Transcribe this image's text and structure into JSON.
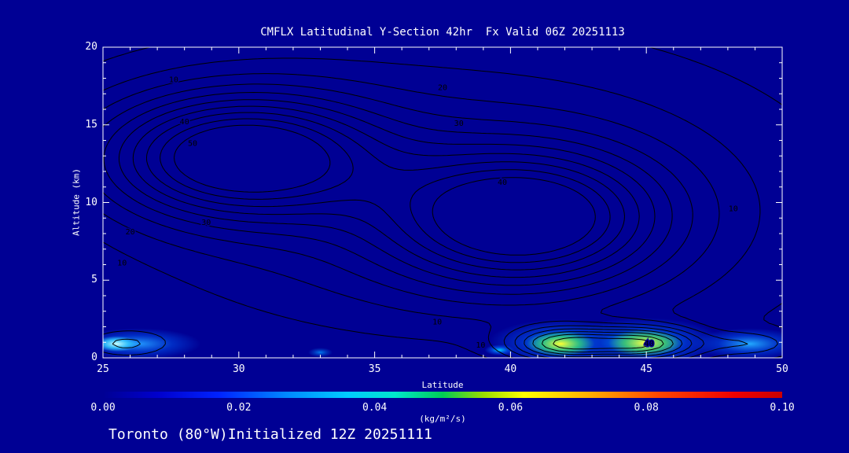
{
  "figure": {
    "title": "CMFLX Latitudinal Y-Section 42hr  Fx Valid 06Z 20251113",
    "footer": "Toronto (80°W)Initialized 12Z 20251111",
    "bg_color": "#000094",
    "frame_color": "#ffffff",
    "text_color": "#ffffff",
    "contour_color": "#000000"
  },
  "axes": {
    "xlabel": "Latitude",
    "ylabel": "Altitude (km)",
    "x_ticks": [
      25,
      30,
      35,
      40,
      45,
      50
    ],
    "y_ticks": [
      0,
      5,
      10,
      15,
      20
    ],
    "x_minor_step": 1,
    "y_minor_step": 1
  },
  "colorbar": {
    "ticks": [
      "0.00",
      "0.02",
      "0.04",
      "0.06",
      "0.08",
      "0.10"
    ],
    "unit": "(kg/m²/s)",
    "min": 0.0,
    "max": 0.1,
    "stops": [
      {
        "p": 0.0,
        "c": "#000094"
      },
      {
        "p": 0.08,
        "c": "#0000cc"
      },
      {
        "p": 0.17,
        "c": "#0022ff"
      },
      {
        "p": 0.27,
        "c": "#0088ff"
      },
      {
        "p": 0.36,
        "c": "#00ccff"
      },
      {
        "p": 0.43,
        "c": "#00e8cc"
      },
      {
        "p": 0.5,
        "c": "#00cc55"
      },
      {
        "p": 0.56,
        "c": "#99dd00"
      },
      {
        "p": 0.62,
        "c": "#ffff00"
      },
      {
        "p": 0.72,
        "c": "#ffaa00"
      },
      {
        "p": 0.82,
        "c": "#ff4400"
      },
      {
        "p": 0.93,
        "c": "#ee0000"
      },
      {
        "p": 1.0,
        "c": "#cc0000"
      }
    ]
  },
  "chart_data": {
    "type": "heatmap",
    "subtype": "latitude-height contour cross-section",
    "title": "CMFLX Latitudinal Y-Section 42hr  Fx Valid 06Z 20251113",
    "xlabel": "Latitude",
    "ylabel": "Altitude (km)",
    "xlim": [
      25,
      50
    ],
    "ylim": [
      0,
      20
    ],
    "value_unit": "(kg/m²/s)",
    "value_range": [
      0.0,
      0.1
    ],
    "contour_levels": [
      5,
      10,
      15,
      20,
      25,
      30,
      35,
      40,
      45,
      50
    ],
    "contour_labels": [
      {
        "lat": 27.6,
        "alt": 17.9,
        "text": "10"
      },
      {
        "lat": 28.0,
        "alt": 15.2,
        "text": "40"
      },
      {
        "lat": 28.3,
        "alt": 13.8,
        "text": "50"
      },
      {
        "lat": 26.0,
        "alt": 8.1,
        "text": "20"
      },
      {
        "lat": 25.7,
        "alt": 6.1,
        "text": "10"
      },
      {
        "lat": 28.8,
        "alt": 8.7,
        "text": "30"
      },
      {
        "lat": 37.5,
        "alt": 17.4,
        "text": "20"
      },
      {
        "lat": 38.1,
        "alt": 15.1,
        "text": "30"
      },
      {
        "lat": 39.7,
        "alt": 11.3,
        "text": "40"
      },
      {
        "lat": 48.2,
        "alt": 9.6,
        "text": "10"
      },
      {
        "lat": 37.3,
        "alt": 2.3,
        "text": "10"
      },
      {
        "lat": 38.9,
        "alt": 0.8,
        "text": "10"
      },
      {
        "lat": 45.1,
        "alt": 0.9,
        "text": "40"
      }
    ],
    "field_peaks": [
      {
        "lat": 30.0,
        "alt": 13.0,
        "slat": 4.8,
        "salt": 3.8,
        "amp": 50
      },
      {
        "lat": 40.5,
        "alt": 9.0,
        "slat": 4.8,
        "salt": 4.2,
        "amp": 46
      },
      {
        "lat": 37.0,
        "alt": 10.0,
        "slat": 13.0,
        "salt": 10.0,
        "amp": 20
      },
      {
        "lat": 42.0,
        "alt": 0.9,
        "slat": 2.0,
        "salt": 1.1,
        "amp": 36
      },
      {
        "lat": 45.0,
        "alt": 0.9,
        "slat": 2.0,
        "salt": 1.1,
        "amp": 36
      },
      {
        "lat": 25.8,
        "alt": 0.9,
        "slat": 1.6,
        "salt": 0.9,
        "amp": 12
      },
      {
        "lat": 48.8,
        "alt": 0.9,
        "slat": 1.6,
        "salt": 0.8,
        "amp": 10
      }
    ],
    "shading_blobs": [
      {
        "lat": 26.3,
        "alt": 0.9,
        "rlat": 2.3,
        "ralt": 1.0,
        "inner": "#2299ff",
        "outer": "#0033cc"
      },
      {
        "lat": 41.9,
        "alt": 1.0,
        "rlat": 2.7,
        "ralt": 1.5,
        "inner": "#00bbff",
        "outer": "#0033cc"
      },
      {
        "lat": 44.9,
        "alt": 1.0,
        "rlat": 2.9,
        "ralt": 1.6,
        "inner": "#00bbff",
        "outer": "#0033cc"
      },
      {
        "lat": 48.8,
        "alt": 0.9,
        "rlat": 2.1,
        "ralt": 1.0,
        "inner": "#22aaff",
        "outer": "#0033cc"
      },
      {
        "lat": 25.5,
        "alt": 0.9,
        "rlat": 0.8,
        "ralt": 0.5,
        "inner": "#ccffff",
        "outer": "#33ccff"
      },
      {
        "lat": 41.85,
        "alt": 0.9,
        "rlat": 1.25,
        "ralt": 0.8,
        "inner": "#ffff33",
        "outer": "#33cc77"
      },
      {
        "lat": 44.95,
        "alt": 0.95,
        "rlat": 1.35,
        "ralt": 0.85,
        "inner": "#ffff44",
        "outer": "#44cc66"
      },
      {
        "lat": 39.6,
        "alt": 0.5,
        "rlat": 0.55,
        "ralt": 0.35,
        "inner": "#00ccff",
        "outer": "#0044dd"
      },
      {
        "lat": 33.0,
        "alt": 0.35,
        "rlat": 0.45,
        "ralt": 0.3,
        "inner": "#0077ee",
        "outer": "#0033bb"
      }
    ]
  }
}
